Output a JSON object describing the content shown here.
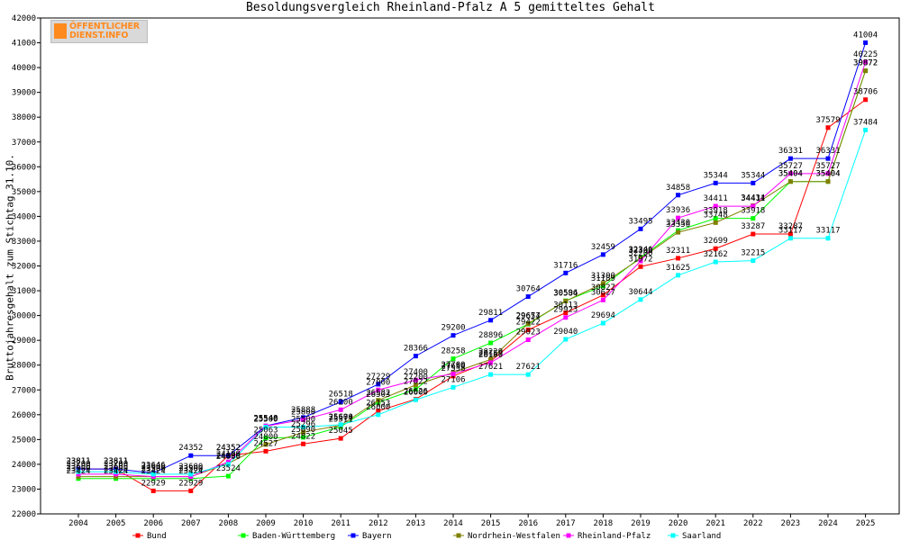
{
  "title": "Besoldungsvergleich Rheinland-Pfalz A 5 gemitteltes Gehalt",
  "logo": {
    "line1": "ÖFFENTLICHER",
    "line2": "DIENST.INFO"
  },
  "chart_data": {
    "type": "line",
    "title": "Besoldungsvergleich Rheinland-Pfalz A 5 gemitteltes Gehalt",
    "xlabel": "",
    "ylabel": "Bruttojahresgehalt zum Stichtag 31.10.",
    "ylim": [
      22000,
      42000
    ],
    "yticks": [
      22000,
      23000,
      24000,
      25000,
      26000,
      27000,
      28000,
      29000,
      30000,
      31000,
      32000,
      33000,
      34000,
      35000,
      36000,
      37000,
      38000,
      39000,
      40000,
      41000,
      42000
    ],
    "categories": [
      "2004",
      "2005",
      "2006",
      "2007",
      "2008",
      "2009",
      "2010",
      "2011",
      "2012",
      "2013",
      "2014",
      "2015",
      "2016",
      "2017",
      "2018",
      "2019",
      "2020",
      "2021",
      "2022",
      "2023",
      "2024",
      "2025"
    ],
    "grid": false,
    "legend_position": "bottom",
    "series": [
      {
        "name": "Bund",
        "color": "#ff0000",
        "values": [
          23811,
          23811,
          22929,
          22929,
          24352,
          24527,
          24822,
          25045,
          26153,
          26626,
          27558,
          28159,
          29422,
          30113,
          30827,
          31972,
          32311,
          32699,
          33287,
          33287,
          37579,
          38706
        ]
      },
      {
        "name": "Baden-Württemberg",
        "color": "#00ff00",
        "values": [
          23424,
          23424,
          23424,
          23424,
          23524,
          25063,
          25090,
          25511,
          26503,
          27022,
          28258,
          28896,
          29654,
          30596,
          31189,
          32346,
          33430,
          33918,
          33918,
          35404,
          35404,
          39872
        ]
      },
      {
        "name": "Bayern",
        "color": "#0000ff",
        "values": [
          23811,
          23811,
          23646,
          24352,
          24352,
          25548,
          25888,
          26518,
          27229,
          28366,
          29200,
          29811,
          30764,
          31716,
          32459,
          33495,
          34858,
          35344,
          35344,
          36331,
          36331,
          41004
        ]
      },
      {
        "name": "Nordrhein-Westfalen",
        "color": "#808000",
        "values": [
          23500,
          23500,
          23500,
          23500,
          24036,
          24800,
          25296,
          25574,
          26582,
          27200,
          27700,
          28229,
          29677,
          30584,
          31300,
          32300,
          33356,
          33748,
          34434,
          35404,
          35404,
          39872
        ]
      },
      {
        "name": "Rheinland-Pfalz",
        "color": "#ff00ff",
        "values": [
          23600,
          23600,
          23500,
          23500,
          24100,
          25540,
          25800,
          26200,
          27000,
          27400,
          27650,
          28100,
          29023,
          29923,
          30627,
          32200,
          33936,
          34411,
          34411,
          35727,
          35727,
          40225
        ]
      },
      {
        "name": "Saarland",
        "color": "#00ffff",
        "values": [
          23700,
          23700,
          23600,
          23600,
          24000,
          25500,
          25500,
          25600,
          26000,
          26600,
          27106,
          27621,
          27621,
          29040,
          29694,
          30644,
          31625,
          32162,
          32215,
          33117,
          33117,
          37484
        ]
      }
    ]
  }
}
